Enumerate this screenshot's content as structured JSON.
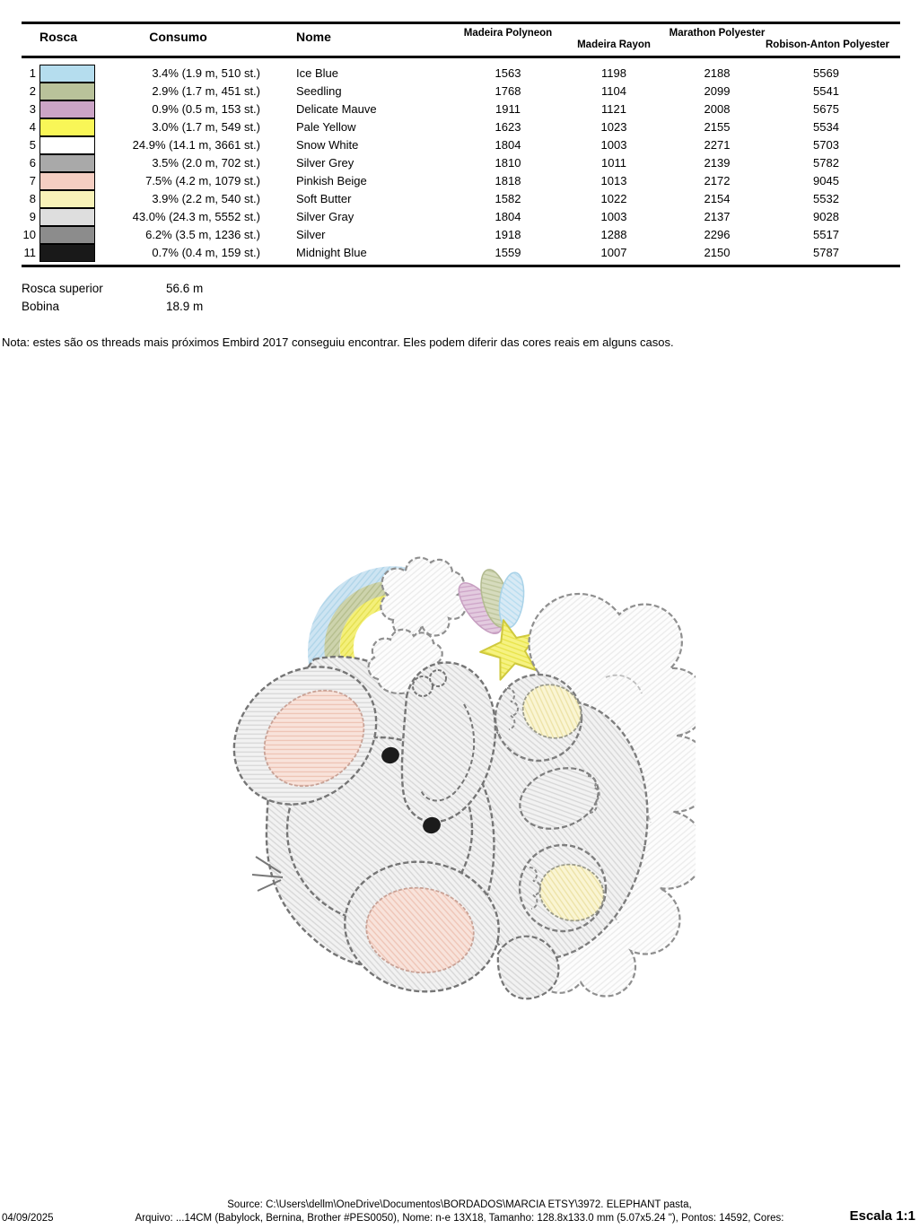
{
  "table": {
    "headers": {
      "rosca": "Rosca",
      "consumo": "Consumo",
      "nome": "Nome",
      "madeira_polyneon": "Madeira Polyneon",
      "madeira_rayon": "Madeira Rayon",
      "marathon_polyester": "Marathon Polyester",
      "robison_anton_polyester": "Robison-Anton Polyester"
    },
    "rows": [
      {
        "idx": "1",
        "color": "#b5ddee",
        "consumo": "3.4% (1.9 m, 510 st.)",
        "nome": "Ice Blue",
        "madeira_polyneon": "1563",
        "madeira_rayon": "1198",
        "marathon": "2188",
        "robison": "5569"
      },
      {
        "idx": "2",
        "color": "#b9c29a",
        "consumo": "2.9% (1.7 m, 451 st.)",
        "nome": "Seedling",
        "madeira_polyneon": "1768",
        "madeira_rayon": "1104",
        "marathon": "2099",
        "robison": "5541"
      },
      {
        "idx": "3",
        "color": "#cba4c6",
        "consumo": "0.9% (0.5 m, 153 st.)",
        "nome": "Delicate Mauve",
        "madeira_polyneon": "1911",
        "madeira_rayon": "1121",
        "marathon": "2008",
        "robison": "5675"
      },
      {
        "idx": "4",
        "color": "#f9f657",
        "consumo": "3.0% (1.7 m, 549 st.)",
        "nome": "Pale Yellow",
        "madeira_polyneon": "1623",
        "madeira_rayon": "1023",
        "marathon": "2155",
        "robison": "5534"
      },
      {
        "idx": "5",
        "color": "#ffffff",
        "consumo": "24.9% (14.1 m, 3661 st.)",
        "nome": "Snow White",
        "madeira_polyneon": "1804",
        "madeira_rayon": "1003",
        "marathon": "2271",
        "robison": "5703"
      },
      {
        "idx": "6",
        "color": "#a9a9a9",
        "consumo": "3.5% (2.0 m, 702 st.)",
        "nome": "Silver Grey",
        "madeira_polyneon": "1810",
        "madeira_rayon": "1011",
        "marathon": "2139",
        "robison": "5782"
      },
      {
        "idx": "7",
        "color": "#f5cec2",
        "consumo": "7.5% (4.2 m, 1079 st.)",
        "nome": "Pinkish Beige",
        "madeira_polyneon": "1818",
        "madeira_rayon": "1013",
        "marathon": "2172",
        "robison": "9045"
      },
      {
        "idx": "8",
        "color": "#f8f2b8",
        "consumo": "3.9% (2.2 m, 540 st.)",
        "nome": "Soft Butter",
        "madeira_polyneon": "1582",
        "madeira_rayon": "1022",
        "marathon": "2154",
        "robison": "5532"
      },
      {
        "idx": "9",
        "color": "#dedede",
        "consumo": "43.0% (24.3 m, 5552 st.)",
        "nome": "Silver Gray",
        "madeira_polyneon": "1804",
        "madeira_rayon": "1003",
        "marathon": "2137",
        "robison": "9028"
      },
      {
        "idx": "10",
        "color": "#8c8c8c",
        "consumo": "6.2% (3.5 m, 1236 st.)",
        "nome": "Silver",
        "madeira_polyneon": "1918",
        "madeira_rayon": "1288",
        "marathon": "2296",
        "robison": "5517"
      },
      {
        "idx": "11",
        "color": "#191919",
        "consumo": "0.7% (0.4 m, 159 st.)",
        "nome": "Midnight Blue",
        "madeira_polyneon": "1559",
        "madeira_rayon": "1007",
        "marathon": "2150",
        "robison": "5787"
      }
    ]
  },
  "totals": {
    "rosca_superior_label": "Rosca superior",
    "rosca_superior_value": "56.6 m",
    "bobina_label": "Bobina",
    "bobina_value": "18.9 m"
  },
  "nota": "Nota: estes são os threads mais próximos Embird 2017 conseguiu encontrar. Eles podem diferir das cores reais em alguns casos.",
  "footer": {
    "source": "Source: C:\\Users\\dellm\\OneDrive\\Documentos\\BORDADOS\\MARCIA ETSY\\3972. ELEPHANT pasta,",
    "date": "04/09/2025",
    "arquivo": "Arquivo: ...14CM (Babylock, Bernina, Brother #PES0050), Nome: n-e 13X18, Tamanho: 128.8x133.0 mm (5.07x5.24 \"), Pontos: 14592, Cores:",
    "escala": "Escala 1:1"
  },
  "design": {
    "palette": {
      "ice_blue": "#b5ddee",
      "seedling": "#b9c29a",
      "delicate_mauve": "#cba4c6",
      "pale_yellow": "#f9f657",
      "snow_white": "#ffffff",
      "silver_grey": "#a9a9a9",
      "pinkish_beige": "#f5cec2",
      "soft_butter": "#f8f2b8",
      "silver_gray": "#dedede",
      "silver": "#8c8c8c",
      "midnight_blue": "#191919"
    }
  }
}
